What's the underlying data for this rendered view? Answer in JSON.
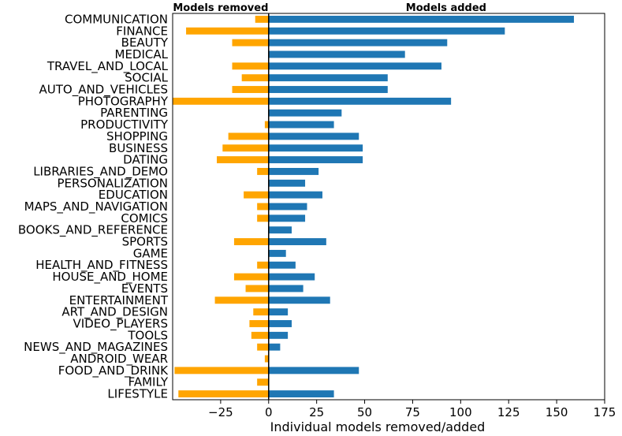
{
  "chart_data": {
    "type": "bar",
    "orientation": "horizontal",
    "categories": [
      "COMMUNICATION",
      "FINANCE",
      "BEAUTY",
      "MEDICAL",
      "TRAVEL_AND_LOCAL",
      "SOCIAL",
      "AUTO_AND_VEHICLES",
      "PHOTOGRAPHY",
      "PARENTING",
      "PRODUCTIVITY",
      "SHOPPING",
      "BUSINESS",
      "DATING",
      "LIBRARIES_AND_DEMO",
      "PERSONALIZATION",
      "EDUCATION",
      "MAPS_AND_NAVIGATION",
      "COMICS",
      "BOOKS_AND_REFERENCE",
      "SPORTS",
      "GAME",
      "HEALTH_AND_FITNESS",
      "HOUSE_AND_HOME",
      "EVENTS",
      "ENTERTAINMENT",
      "ART_AND_DESIGN",
      "VIDEO_PLAYERS",
      "TOOLS",
      "NEWS_AND_MAGAZINES",
      "ANDROID_WEAR",
      "FOOD_AND_DRINK",
      "FAMILY",
      "LIFESTYLE"
    ],
    "series": [
      {
        "name": "Models removed",
        "color": "#ffa500",
        "values": [
          -7,
          -43,
          -19,
          0,
          -19,
          -14,
          -19,
          -50,
          0,
          -2,
          -21,
          -24,
          -27,
          -6,
          0,
          -13,
          -6,
          -6,
          0,
          -18,
          0,
          -6,
          -18,
          -12,
          -28,
          -8,
          -10,
          -9,
          -6,
          -2,
          -49,
          -6,
          -47
        ]
      },
      {
        "name": "Models added",
        "color": "#1f77b4",
        "values": [
          159,
          123,
          93,
          71,
          90,
          62,
          62,
          95,
          38,
          34,
          47,
          49,
          49,
          26,
          19,
          28,
          20,
          19,
          12,
          30,
          9,
          14,
          24,
          18,
          32,
          10,
          12,
          10,
          6,
          0,
          47,
          0,
          34
        ]
      }
    ],
    "xlabel": "Individual models removed/added",
    "ylabel": "",
    "xlim": [
      -50,
      175
    ],
    "xticks": [
      -25,
      0,
      25,
      50,
      75,
      100,
      125,
      150,
      175
    ],
    "xtick_labels": [
      "−25",
      "0",
      "25",
      "50",
      "75",
      "100",
      "125",
      "150",
      "175"
    ],
    "grid": false,
    "top_labels": {
      "left": "Models removed",
      "right": "Models added"
    }
  }
}
